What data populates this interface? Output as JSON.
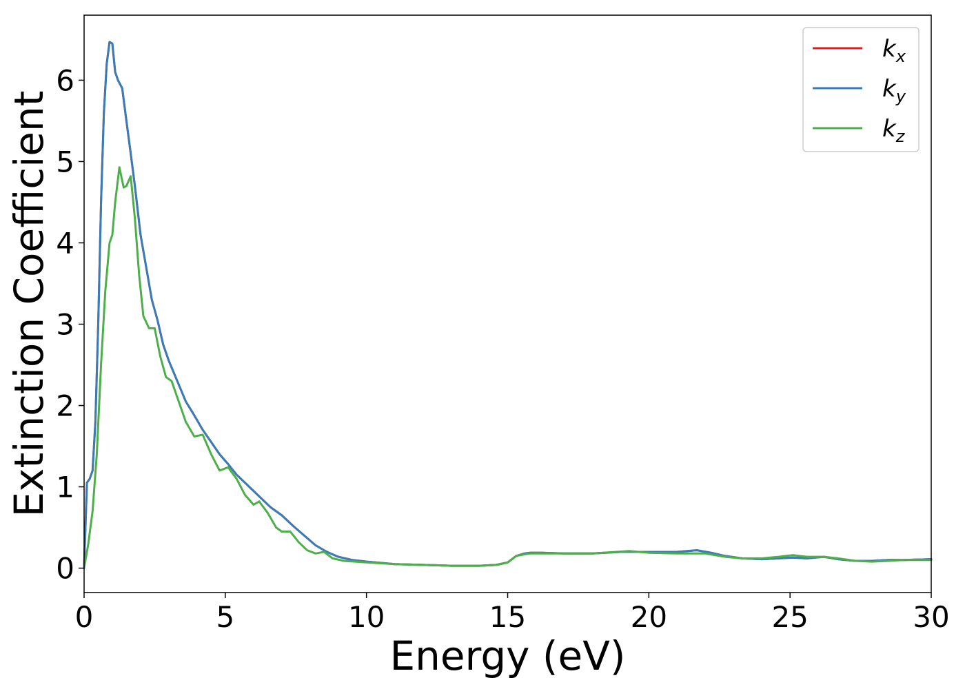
{
  "chart_data": {
    "type": "line",
    "xlabel": "Energy (eV)",
    "ylabel": "Extinction Coefficient",
    "xlim": [
      0,
      30
    ],
    "ylim": [
      -0.3,
      6.8
    ],
    "xticks": [
      0,
      5,
      10,
      15,
      20,
      25,
      30
    ],
    "yticks": [
      0,
      1,
      2,
      3,
      4,
      5,
      6
    ],
    "grid": false,
    "legend_position": "top-right",
    "series": [
      {
        "name": "k_x",
        "label_base": "k",
        "label_sub": "x",
        "color": "#e41a1c",
        "x": [
          0,
          0.1,
          0.2,
          0.3,
          0.4,
          0.5,
          0.6,
          0.7,
          0.8,
          0.9,
          1.0,
          1.1,
          1.2,
          1.35,
          1.5,
          1.65,
          1.8,
          2.0,
          2.2,
          2.4,
          2.6,
          2.8,
          3.0,
          3.3,
          3.6,
          3.9,
          4.2,
          4.5,
          4.8,
          5.1,
          5.4,
          5.7,
          6.0,
          6.3,
          6.6,
          7.0,
          7.4,
          7.8,
          8.2,
          8.6,
          9.0,
          9.5,
          10,
          11,
          12,
          13,
          14,
          14.6,
          15.0,
          15.3,
          15.6,
          15.8,
          16.2,
          17,
          18,
          19,
          20,
          21,
          21.7,
          22.2,
          22.7,
          23.3,
          24,
          24.6,
          25.1,
          25.6,
          26.2,
          26.7,
          27.3,
          27.9,
          28.5,
          29,
          30
        ],
        "values": [
          0,
          1.05,
          1.1,
          1.2,
          1.8,
          3.0,
          4.5,
          5.6,
          6.2,
          6.47,
          6.45,
          6.1,
          6.0,
          5.9,
          5.5,
          5.1,
          4.7,
          4.1,
          3.7,
          3.3,
          3.05,
          2.75,
          2.55,
          2.3,
          2.05,
          1.88,
          1.7,
          1.55,
          1.4,
          1.28,
          1.15,
          1.05,
          0.95,
          0.85,
          0.75,
          0.65,
          0.52,
          0.4,
          0.28,
          0.2,
          0.14,
          0.1,
          0.08,
          0.05,
          0.04,
          0.03,
          0.03,
          0.04,
          0.07,
          0.15,
          0.18,
          0.19,
          0.19,
          0.18,
          0.18,
          0.2,
          0.2,
          0.2,
          0.22,
          0.19,
          0.15,
          0.12,
          0.11,
          0.12,
          0.13,
          0.12,
          0.14,
          0.11,
          0.09,
          0.09,
          0.1,
          0.1,
          0.11
        ]
      },
      {
        "name": "k_y",
        "label_base": "k",
        "label_sub": "y",
        "color": "#377eb8",
        "x": [
          0,
          0.1,
          0.2,
          0.3,
          0.4,
          0.5,
          0.6,
          0.7,
          0.8,
          0.9,
          1.0,
          1.1,
          1.2,
          1.35,
          1.5,
          1.65,
          1.8,
          2.0,
          2.2,
          2.4,
          2.6,
          2.8,
          3.0,
          3.3,
          3.6,
          3.9,
          4.2,
          4.5,
          4.8,
          5.1,
          5.4,
          5.7,
          6.0,
          6.3,
          6.6,
          7.0,
          7.4,
          7.8,
          8.2,
          8.6,
          9.0,
          9.5,
          10,
          11,
          12,
          13,
          14,
          14.6,
          15.0,
          15.3,
          15.6,
          15.8,
          16.2,
          17,
          18,
          19,
          20,
          21,
          21.7,
          22.2,
          22.7,
          23.3,
          24,
          24.6,
          25.1,
          25.6,
          26.2,
          26.7,
          27.3,
          27.9,
          28.5,
          29,
          30
        ],
        "values": [
          0,
          1.05,
          1.1,
          1.2,
          1.8,
          3.0,
          4.5,
          5.6,
          6.2,
          6.47,
          6.45,
          6.1,
          6.0,
          5.9,
          5.5,
          5.1,
          4.7,
          4.1,
          3.7,
          3.3,
          3.05,
          2.75,
          2.55,
          2.3,
          2.05,
          1.88,
          1.7,
          1.55,
          1.4,
          1.28,
          1.15,
          1.05,
          0.95,
          0.85,
          0.75,
          0.65,
          0.52,
          0.4,
          0.28,
          0.2,
          0.14,
          0.1,
          0.08,
          0.05,
          0.04,
          0.03,
          0.03,
          0.04,
          0.07,
          0.15,
          0.18,
          0.19,
          0.19,
          0.18,
          0.18,
          0.2,
          0.2,
          0.2,
          0.22,
          0.19,
          0.15,
          0.12,
          0.11,
          0.12,
          0.13,
          0.12,
          0.14,
          0.11,
          0.09,
          0.09,
          0.1,
          0.1,
          0.11
        ]
      },
      {
        "name": "k_z",
        "label_base": "k",
        "label_sub": "z",
        "color": "#4daf4a",
        "x": [
          0,
          0.15,
          0.3,
          0.45,
          0.6,
          0.75,
          0.9,
          1.0,
          1.1,
          1.25,
          1.4,
          1.5,
          1.65,
          1.8,
          1.95,
          2.1,
          2.3,
          2.5,
          2.7,
          2.9,
          3.1,
          3.3,
          3.6,
          3.9,
          4.2,
          4.5,
          4.8,
          5.1,
          5.4,
          5.7,
          6.0,
          6.2,
          6.5,
          6.8,
          7.0,
          7.3,
          7.6,
          7.9,
          8.2,
          8.5,
          8.8,
          9.2,
          10,
          11,
          12,
          13,
          14,
          14.6,
          15.0,
          15.3,
          15.6,
          15.8,
          16.2,
          17,
          18,
          19.3,
          20,
          21,
          22,
          22.7,
          23.3,
          24,
          24.6,
          25.1,
          25.6,
          26.2,
          26.7,
          27.3,
          27.9,
          28.5,
          29,
          30
        ],
        "values": [
          0,
          0.3,
          0.7,
          1.4,
          2.5,
          3.4,
          4.0,
          4.1,
          4.5,
          4.93,
          4.68,
          4.7,
          4.82,
          4.3,
          3.6,
          3.1,
          2.95,
          2.95,
          2.6,
          2.35,
          2.3,
          2.1,
          1.8,
          1.62,
          1.64,
          1.4,
          1.2,
          1.24,
          1.1,
          0.9,
          0.78,
          0.82,
          0.68,
          0.5,
          0.45,
          0.45,
          0.32,
          0.22,
          0.18,
          0.2,
          0.12,
          0.09,
          0.07,
          0.05,
          0.04,
          0.03,
          0.03,
          0.04,
          0.07,
          0.15,
          0.17,
          0.18,
          0.18,
          0.18,
          0.18,
          0.21,
          0.19,
          0.18,
          0.18,
          0.14,
          0.12,
          0.12,
          0.14,
          0.16,
          0.14,
          0.14,
          0.12,
          0.09,
          0.08,
          0.09,
          0.1,
          0.1
        ]
      }
    ]
  }
}
